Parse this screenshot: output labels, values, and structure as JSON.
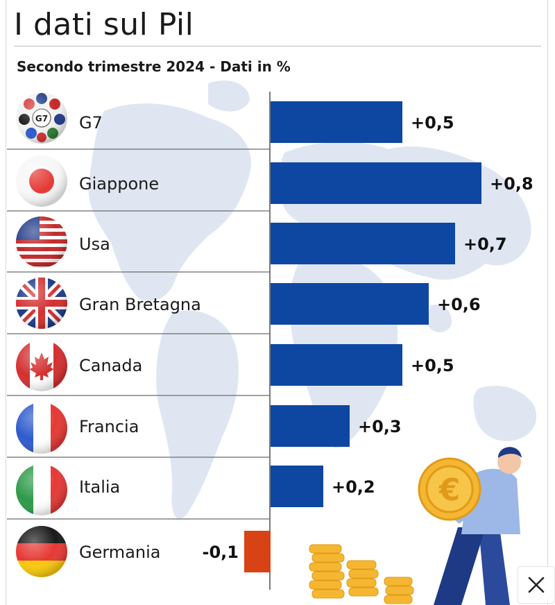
{
  "chart_data": {
    "type": "bar",
    "orientation": "horizontal",
    "title": "I dati sul Pil",
    "subtitle": "Secondo trimestre 2024 - Dati in %",
    "xlim": [
      -0.1,
      0.8
    ],
    "grid": false,
    "series": [
      {
        "values": [
          0.5,
          0.8,
          0.7,
          0.6,
          0.5,
          0.3,
          0.2,
          -0.1
        ],
        "labels": [
          "+0,5",
          "+0,8",
          "+0,7",
          "+0,6",
          "+0,5",
          "+0,3",
          "+0,2",
          "-0,1"
        ]
      }
    ],
    "categories": [
      "G7",
      "Giappone",
      "Usa",
      "Gran Bretagna",
      "Canada",
      "Francia",
      "Italia",
      "Germania"
    ],
    "g7_badge": "G7",
    "colors": {
      "positive": "#0d47a1",
      "negative": "#d84315",
      "map": "#dfe6f2"
    },
    "flag_icons": [
      "g7-flags-icon",
      "japan-flag-icon",
      "usa-flag-icon",
      "uk-flag-icon",
      "canada-flag-icon",
      "france-flag-icon",
      "italy-flag-icon",
      "germany-flag-icon"
    ]
  },
  "close_button": {
    "icon": "close-icon"
  }
}
